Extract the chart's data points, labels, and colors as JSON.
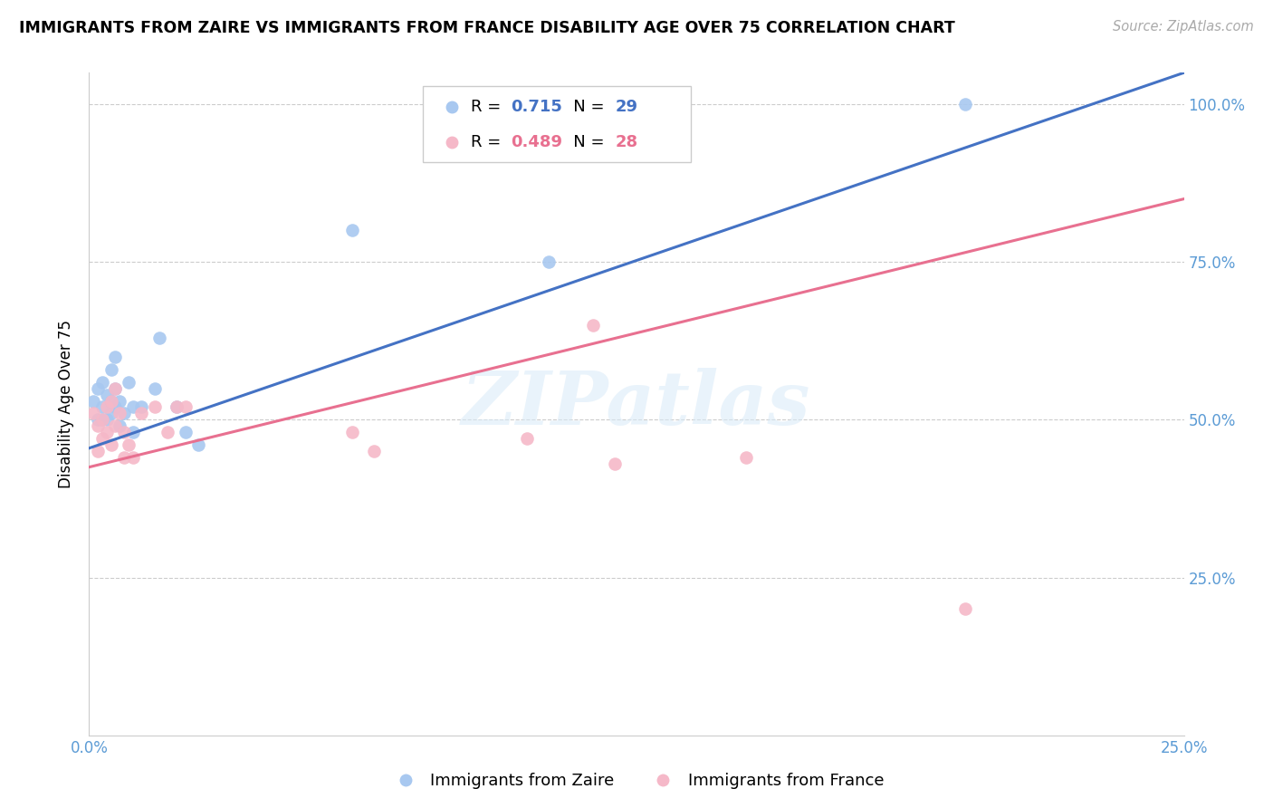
{
  "title": "IMMIGRANTS FROM ZAIRE VS IMMIGRANTS FROM FRANCE DISABILITY AGE OVER 75 CORRELATION CHART",
  "source": "Source: ZipAtlas.com",
  "ylabel": "Disability Age Over 75",
  "legend_zaire": "Immigrants from Zaire",
  "legend_france": "Immigrants from France",
  "R_zaire": 0.715,
  "N_zaire": 29,
  "R_france": 0.489,
  "N_france": 28,
  "xmin": 0.0,
  "xmax": 0.25,
  "ymin": 0.0,
  "ymax": 1.05,
  "xticks": [
    0.0,
    0.05,
    0.1,
    0.15,
    0.2,
    0.25
  ],
  "yticks": [
    0.25,
    0.5,
    0.75,
    1.0
  ],
  "xtick_labels": [
    "0.0%",
    "",
    "",
    "",
    "",
    "25.0%"
  ],
  "ytick_labels": [
    "25.0%",
    "50.0%",
    "75.0%",
    "100.0%"
  ],
  "color_zaire": "#A8C8F0",
  "color_france": "#F5B8C8",
  "line_color_zaire": "#4472C4",
  "line_color_france": "#E87090",
  "zaire_x": [
    0.001,
    0.002,
    0.002,
    0.003,
    0.003,
    0.003,
    0.004,
    0.004,
    0.005,
    0.005,
    0.005,
    0.006,
    0.006,
    0.006,
    0.007,
    0.007,
    0.008,
    0.009,
    0.01,
    0.01,
    0.012,
    0.015,
    0.016,
    0.02,
    0.022,
    0.025,
    0.06,
    0.105,
    0.2
  ],
  "zaire_y": [
    0.53,
    0.55,
    0.5,
    0.56,
    0.52,
    0.5,
    0.54,
    0.5,
    0.58,
    0.53,
    0.51,
    0.6,
    0.55,
    0.52,
    0.53,
    0.49,
    0.51,
    0.56,
    0.52,
    0.48,
    0.52,
    0.55,
    0.63,
    0.52,
    0.48,
    0.46,
    0.8,
    0.75,
    1.0
  ],
  "france_x": [
    0.001,
    0.002,
    0.002,
    0.003,
    0.003,
    0.004,
    0.004,
    0.005,
    0.005,
    0.006,
    0.006,
    0.007,
    0.008,
    0.008,
    0.009,
    0.01,
    0.012,
    0.015,
    0.018,
    0.02,
    0.022,
    0.06,
    0.065,
    0.1,
    0.115,
    0.12,
    0.15,
    0.2
  ],
  "france_y": [
    0.51,
    0.49,
    0.45,
    0.5,
    0.47,
    0.52,
    0.48,
    0.53,
    0.46,
    0.55,
    0.49,
    0.51,
    0.48,
    0.44,
    0.46,
    0.44,
    0.51,
    0.52,
    0.48,
    0.52,
    0.52,
    0.48,
    0.45,
    0.47,
    0.65,
    0.43,
    0.44,
    0.2
  ],
  "line_zaire_x0": 0.0,
  "line_zaire_y0": 0.455,
  "line_zaire_x1": 0.25,
  "line_zaire_y1": 1.05,
  "line_france_x0": 0.0,
  "line_france_y0": 0.425,
  "line_france_x1": 0.25,
  "line_france_y1": 0.85,
  "watermark": "ZIPatlas",
  "background_color": "#FFFFFF",
  "grid_color": "#CCCCCC"
}
